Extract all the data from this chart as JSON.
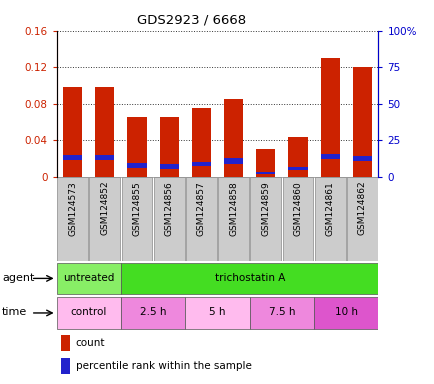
{
  "title": "GDS2923 / 6668",
  "samples": [
    "GSM124573",
    "GSM124852",
    "GSM124855",
    "GSM124856",
    "GSM124857",
    "GSM124858",
    "GSM124859",
    "GSM124860",
    "GSM124861",
    "GSM124862"
  ],
  "count_values": [
    0.098,
    0.098,
    0.065,
    0.065,
    0.075,
    0.085,
    0.03,
    0.044,
    0.13,
    0.12
  ],
  "percentile_values": [
    0.021,
    0.021,
    0.012,
    0.011,
    0.014,
    0.017,
    0.004,
    0.009,
    0.022,
    0.02
  ],
  "blue_heights": [
    0.006,
    0.006,
    0.005,
    0.005,
    0.005,
    0.006,
    0.003,
    0.004,
    0.006,
    0.006
  ],
  "ylim_left": [
    0,
    0.16
  ],
  "ylim_right": [
    0,
    100
  ],
  "yticks_left": [
    0,
    0.04,
    0.08,
    0.12,
    0.16
  ],
  "yticks_right": [
    0,
    25,
    50,
    75,
    100
  ],
  "ytick_labels_left": [
    "0",
    "0.04",
    "0.08",
    "0.12",
    "0.16"
  ],
  "ytick_labels_right": [
    "0",
    "25",
    "50",
    "75",
    "100%"
  ],
  "count_color": "#cc2200",
  "percentile_color": "#2222cc",
  "bar_width": 0.6,
  "agent_items": [
    [
      0,
      2,
      "#88ee66",
      "untreated"
    ],
    [
      2,
      10,
      "#44dd22",
      "trichostatin A"
    ]
  ],
  "time_items": [
    [
      0,
      2,
      "#ffbbee",
      "control"
    ],
    [
      2,
      4,
      "#ee88dd",
      "2.5 h"
    ],
    [
      4,
      6,
      "#ffbbee",
      "5 h"
    ],
    [
      6,
      8,
      "#ee88dd",
      "7.5 h"
    ],
    [
      8,
      10,
      "#dd55cc",
      "10 h"
    ]
  ],
  "legend_count_label": "count",
  "legend_percentile_label": "percentile rank within the sample",
  "agent_label": "agent",
  "time_label": "time",
  "background_color": "#ffffff",
  "tick_label_color_left": "#cc2200",
  "tick_label_color_right": "#0000cc",
  "xtick_bg_color": "#cccccc",
  "grid_color": "#333333"
}
